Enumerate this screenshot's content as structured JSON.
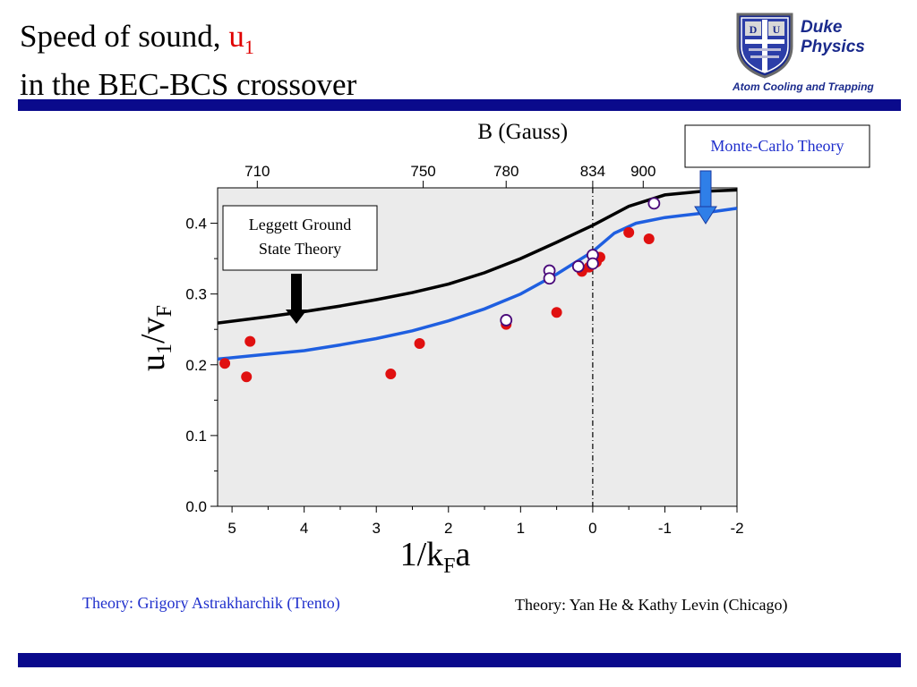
{
  "header": {
    "title_part1": "Speed of sound, ",
    "title_symbol": "u",
    "title_symbol_sub": "1",
    "title_line2": "in the BEC-BCS crossover"
  },
  "logo": {
    "letters": [
      "D",
      "U"
    ],
    "name_line1": "Duke",
    "name_line2": "Physics",
    "subtitle": "Atom Cooling and Trapping"
  },
  "colors": {
    "title_accent": "#e00000",
    "brand_blue": "#0a0a8c",
    "experiment_points": "#e01010",
    "leggett_curve": "#000000",
    "monte_carlo_curve": "#1f5fe0",
    "plot_background": "#ebebeb"
  },
  "chart_data": {
    "type": "scatter",
    "ylabel_main": "u",
    "ylabel_sub1": "1",
    "ylabel_slash": "/v",
    "ylabel_sub2": "F",
    "xlabel_main": "1/k",
    "xlabel_sub": "F",
    "xlabel_end": "a",
    "top_axis_label": "B (Gauss)",
    "x_reversed": true,
    "xlim": [
      5.2,
      -2
    ],
    "ylim": [
      0,
      0.45
    ],
    "grid": false,
    "x_ticks": [
      5,
      4,
      3,
      2,
      1,
      0,
      -1,
      -2
    ],
    "x_tick_labels": [
      "5",
      "4",
      "3",
      "2",
      "1",
      "0",
      "-1",
      "-2"
    ],
    "y_ticks": [
      0.0,
      0.1,
      0.2,
      0.3,
      0.4
    ],
    "y_tick_labels": [
      "0.0",
      "0.1",
      "0.2",
      "0.3",
      "0.4"
    ],
    "top_ticks": [
      {
        "label": "710",
        "x": 4.65
      },
      {
        "label": "750",
        "x": 2.35
      },
      {
        "label": "780",
        "x": 1.2
      },
      {
        "label": "834",
        "x": 0
      },
      {
        "label": "900",
        "x": -0.7
      }
    ],
    "resonance_x": 0,
    "series": [
      {
        "kind": "line",
        "color": "#000000",
        "x": [
          5.2,
          4.5,
          4.0,
          3.5,
          3.0,
          2.5,
          2.0,
          1.5,
          1.0,
          0.5,
          0.0,
          -0.5,
          -1.0,
          -1.5,
          -2.0
        ],
        "y": [
          0.259,
          0.268,
          0.275,
          0.283,
          0.292,
          0.302,
          0.314,
          0.33,
          0.35,
          0.373,
          0.397,
          0.424,
          0.44,
          0.445,
          0.447
        ]
      },
      {
        "kind": "line",
        "color": "#1f5fe0",
        "x": [
          5.2,
          4.5,
          4.0,
          3.5,
          3.0,
          2.5,
          2.0,
          1.5,
          1.0,
          0.5,
          0.0,
          -0.3,
          -0.6,
          -1.0,
          -1.5,
          -2.0
        ],
        "y": [
          0.208,
          0.215,
          0.22,
          0.228,
          0.237,
          0.248,
          0.262,
          0.279,
          0.3,
          0.328,
          0.36,
          0.386,
          0.4,
          0.408,
          0.414,
          0.421
        ]
      },
      {
        "kind": "points",
        "style": "filled",
        "color": "#e01010",
        "points": [
          [
            5.1,
            0.202
          ],
          [
            4.8,
            0.183
          ],
          [
            4.75,
            0.233
          ],
          [
            2.8,
            0.187
          ],
          [
            2.4,
            0.23
          ],
          [
            1.2,
            0.257
          ],
          [
            0.5,
            0.274
          ],
          [
            0.15,
            0.332
          ],
          [
            0.05,
            0.338
          ],
          [
            -0.05,
            0.345
          ],
          [
            -0.1,
            0.352
          ],
          [
            -0.5,
            0.387
          ],
          [
            -0.78,
            0.378
          ]
        ]
      },
      {
        "kind": "points",
        "style": "open",
        "color": "#4a0a7a",
        "points": [
          [
            1.2,
            0.263
          ],
          [
            0.6,
            0.333
          ],
          [
            0.6,
            0.322
          ],
          [
            0.2,
            0.339
          ],
          [
            0.0,
            0.355
          ],
          [
            0.0,
            0.343
          ],
          [
            -0.85,
            0.428
          ]
        ]
      }
    ],
    "annotations": [
      {
        "text_line1": "Leggett Ground",
        "text_line2": "State Theory"
      },
      {
        "text": "Monte-Carlo Theory"
      }
    ]
  },
  "credits": {
    "left": "Theory: Grigory Astrakharchik (Trento)",
    "right": "Theory: Yan He & Kathy Levin (Chicago)"
  }
}
